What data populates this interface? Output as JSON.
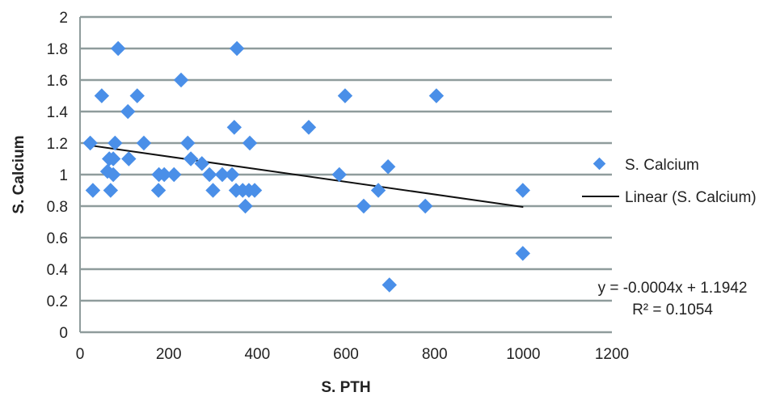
{
  "chart_data": {
    "type": "scatter",
    "title": "",
    "xlabel": "S. PTH",
    "ylabel": "S. Calcium",
    "xlim": [
      0,
      1200
    ],
    "ylim": [
      0,
      2
    ],
    "xticks": [
      0,
      200,
      400,
      600,
      800,
      1000,
      1200
    ],
    "yticks": [
      0,
      0.2,
      0.4,
      0.6,
      0.8,
      1,
      1.2,
      1.4,
      1.6,
      1.8,
      2
    ],
    "ytick_labels": [
      "0",
      "0.2",
      "0.4",
      "0.6",
      "0.8",
      "1",
      "1.2",
      "1.4",
      "1.6",
      "1.8",
      "2"
    ],
    "grid": "horizontal",
    "legend_position": "right",
    "colors": {
      "points": "#4a8fe8",
      "trend": "#111111",
      "grid": "#8f9c9c"
    },
    "series": [
      {
        "name": "S. Calcium",
        "points": [
          [
            86,
            1.8
          ],
          [
            354,
            1.8
          ],
          [
            228,
            1.6
          ],
          [
            49,
            1.5
          ],
          [
            129,
            1.5
          ],
          [
            598,
            1.5
          ],
          [
            804,
            1.5
          ],
          [
            108,
            1.4
          ],
          [
            348,
            1.3
          ],
          [
            516,
            1.3
          ],
          [
            23,
            1.2
          ],
          [
            79,
            1.2
          ],
          [
            144,
            1.2
          ],
          [
            243,
            1.2
          ],
          [
            383,
            1.2
          ],
          [
            66,
            1.1
          ],
          [
            75,
            1.1
          ],
          [
            110,
            1.1
          ],
          [
            250,
            1.1
          ],
          [
            275,
            1.07
          ],
          [
            695,
            1.05
          ],
          [
            62,
            1.02
          ],
          [
            75,
            1.0
          ],
          [
            178,
            1.0
          ],
          [
            190,
            1.0
          ],
          [
            212,
            1.0
          ],
          [
            292,
            1.0
          ],
          [
            321,
            1.0
          ],
          [
            343,
            1.0
          ],
          [
            585,
            1.0
          ],
          [
            29,
            0.9
          ],
          [
            69,
            0.9
          ],
          [
            177,
            0.9
          ],
          [
            300,
            0.9
          ],
          [
            352,
            0.9
          ],
          [
            367,
            0.9
          ],
          [
            381,
            0.9
          ],
          [
            394,
            0.9
          ],
          [
            673,
            0.9
          ],
          [
            999,
            0.9
          ],
          [
            373,
            0.8
          ],
          [
            640,
            0.8
          ],
          [
            779,
            0.8
          ],
          [
            999,
            0.5
          ],
          [
            698,
            0.3
          ]
        ]
      }
    ],
    "trendline": {
      "name": "Linear (S. Calcium)",
      "slope": -0.0004,
      "intercept": 1.1942,
      "x_range": [
        20,
        1000
      ],
      "equation": "y = -0.0004x + 1.1942",
      "r2": "R² = 0.1054"
    }
  }
}
